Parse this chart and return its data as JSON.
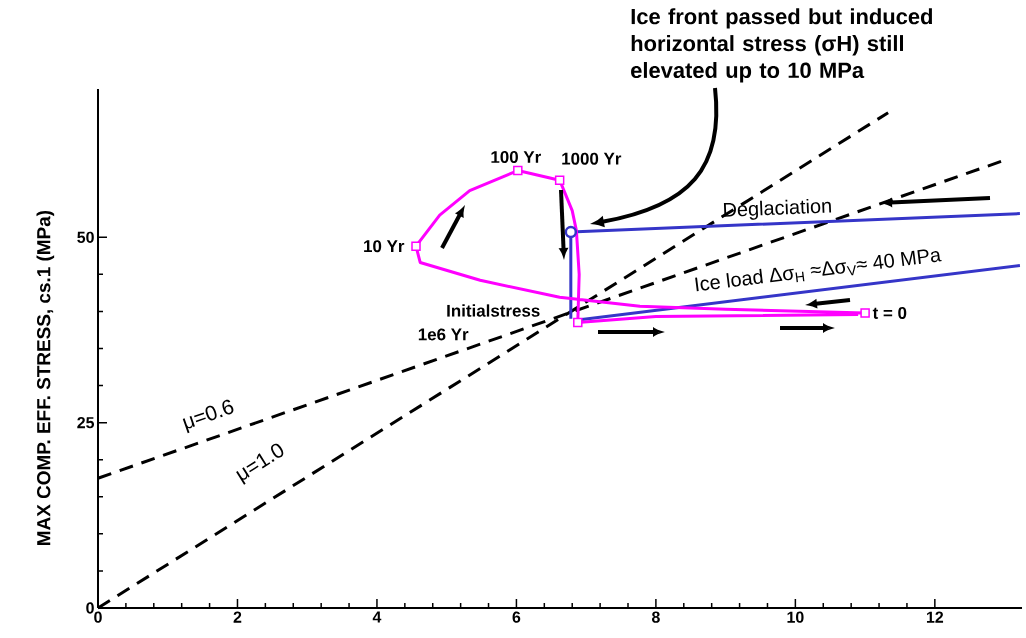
{
  "chart_data": {
    "type": "line",
    "ylabel": "MAX COMP. EFF. STRESS, cs.1 (MPa)",
    "xlim": [
      0,
      13.25
    ],
    "ylim": [
      0,
      70
    ],
    "xticks": [
      0,
      2,
      4,
      6,
      8,
      10,
      12
    ],
    "yticks": [
      0,
      25,
      50
    ],
    "marker": "none",
    "series": [
      {
        "name": "μ=0.6",
        "color": "#000000",
        "line_style": "dashed",
        "x": [
          0,
          13.0
        ],
        "values": [
          17.5,
          60.4
        ]
      },
      {
        "name": "μ=1.0",
        "color": "#000000",
        "line_style": "dashed",
        "x": [
          0,
          11.33
        ],
        "values": [
          0,
          66.8
        ]
      },
      {
        "color": "#ff00ff",
        "x": [
          11.0,
          9.0,
          7.77,
          6.62,
          5.48,
          4.62,
          4.56,
          4.9,
          5.33,
          6.02,
          6.62,
          6.8,
          6.86,
          6.9,
          6.88,
          8.0,
          10.9
        ],
        "values": [
          39.8,
          40.3,
          40.7,
          41.9,
          44.2,
          46.6,
          48.8,
          53.0,
          56.3,
          59.0,
          57.7,
          53.6,
          50.9,
          45.0,
          38.5,
          39.3,
          39.6
        ]
      },
      {
        "type": "scatter",
        "marker": "square",
        "color": "#ff00ff",
        "x": [
          4.56,
          6.02,
          6.62,
          6.88,
          11.0
        ],
        "values": [
          48.8,
          59.0,
          57.7,
          38.5,
          39.8
        ]
      },
      {
        "name": "Deglaciation",
        "color": "#3535c8",
        "x": [
          13.22,
          6.78,
          6.78
        ],
        "values": [
          53.2,
          50.7,
          39.0
        ]
      },
      {
        "name": "Ice load Δσ$_{H}$ ≈Δσ$_{V}$≈ 40 MPa",
        "color": "#3535c8",
        "x": [
          6.85,
          13.22
        ],
        "values": [
          38.8,
          46.2
        ]
      },
      {
        "type": "scatter",
        "marker": "circle",
        "color": "#3535c8",
        "x": [
          6.78
        ],
        "values": [
          50.7
        ]
      }
    ],
    "annotations": [
      {
        "text": "10 Yr",
        "x": 4.56,
        "y": 48.8
      },
      {
        "text": "100 Yr",
        "x": 6.02,
        "y": 59.0
      },
      {
        "text": "1000 Yr",
        "x": 6.62,
        "y": 57.7
      },
      {
        "text": "Initialstress",
        "x": 6.88,
        "y": 38.5
      },
      "1e6 Yr",
      {
        "text": "t = 0",
        "x": 11.0,
        "y": 39.8
      },
      "Ice front passed but induced horizontal stress (σH) still elevated up to 10 MPa"
    ]
  }
}
